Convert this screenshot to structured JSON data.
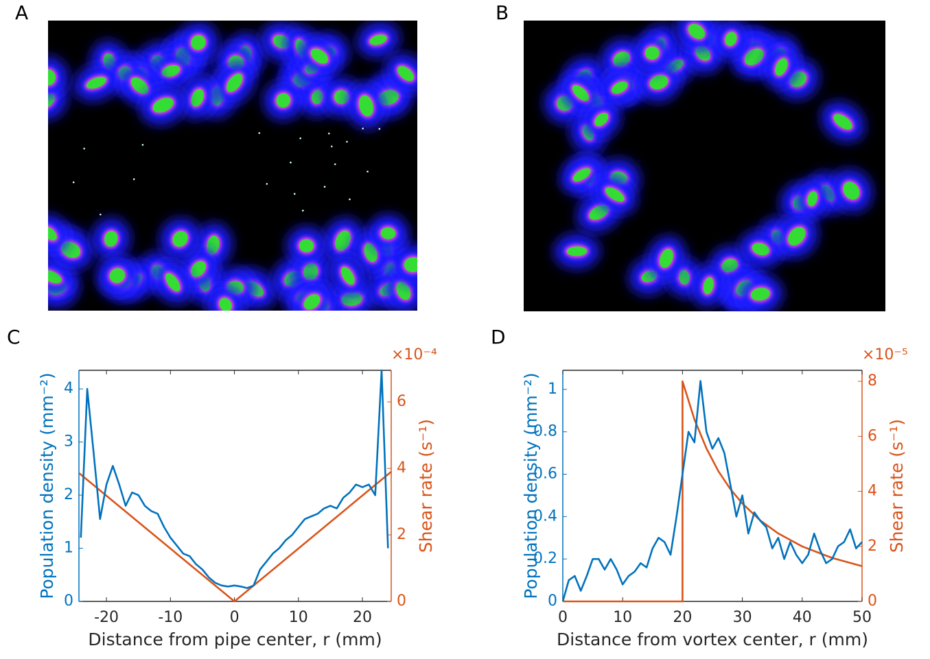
{
  "panels": [
    {
      "label": "A"
    },
    {
      "label": "B"
    }
  ],
  "chart_data": [
    {
      "type": "line",
      "panel_label": "C",
      "xlabel": "Distance from pipe center, r (mm)",
      "ylabel": "Population density (mm⁻²)",
      "y2label": "Shear rate (s⁻¹)",
      "y2multiplier": "×10⁻⁴",
      "xlim": [
        -24.3,
        24.5
      ],
      "xticks": [
        -20,
        -10,
        0,
        10,
        20
      ],
      "ylim": [
        0,
        4.35
      ],
      "yticks": [
        0,
        1,
        2,
        3,
        4
      ],
      "y2lim": [
        0,
        6.95
      ],
      "y2ticks": [
        0,
        2,
        4,
        6
      ],
      "series": [
        {
          "color": "#0072bd",
          "axis": "y",
          "x": [
            -24,
            -23,
            -22,
            -21,
            -20,
            -19,
            -18,
            -17,
            -16,
            -15,
            -14,
            -13,
            -12,
            -11,
            -10,
            -9,
            -8,
            -7,
            -6,
            -5,
            -4,
            -3,
            -2,
            -1,
            0,
            1,
            2,
            3,
            4,
            5,
            6,
            7,
            8,
            9,
            10,
            11,
            12,
            13,
            14,
            15,
            16,
            17,
            18,
            19,
            20,
            21,
            22,
            23,
            24
          ],
          "values": [
            1.2,
            4.0,
            2.8,
            1.55,
            2.2,
            2.55,
            2.2,
            1.8,
            2.05,
            2.0,
            1.8,
            1.7,
            1.65,
            1.4,
            1.2,
            1.05,
            0.9,
            0.85,
            0.7,
            0.6,
            0.45,
            0.35,
            0.3,
            0.28,
            0.3,
            0.28,
            0.25,
            0.3,
            0.6,
            0.75,
            0.9,
            1.0,
            1.15,
            1.25,
            1.4,
            1.55,
            1.6,
            1.65,
            1.75,
            1.8,
            1.75,
            1.95,
            2.05,
            2.2,
            2.15,
            2.2,
            2.0,
            4.35,
            1.0
          ]
        },
        {
          "color": "#d95319",
          "axis": "y2",
          "x": [
            -24.3,
            0,
            24.5
          ],
          "values": [
            3.86,
            0,
            3.9
          ]
        }
      ]
    },
    {
      "type": "line",
      "panel_label": "D",
      "xlabel": "Distance from vortex center, r (mm)",
      "ylabel": "Population density (mm⁻²)",
      "y2label": "Shear rate (s⁻¹)",
      "y2multiplier": "×10⁻⁵",
      "xlim": [
        0,
        50
      ],
      "xticks": [
        0,
        10,
        20,
        30,
        40,
        50
      ],
      "ylim": [
        0,
        1.09
      ],
      "yticks": [
        0,
        0.2,
        0.4,
        0.6,
        0.8,
        1
      ],
      "y2lim": [
        0,
        8.4
      ],
      "y2ticks": [
        0,
        2,
        4,
        6,
        8
      ],
      "series": [
        {
          "color": "#0072bd",
          "axis": "y",
          "x": [
            0,
            1,
            2,
            3,
            4,
            5,
            6,
            7,
            8,
            9,
            10,
            11,
            12,
            13,
            14,
            15,
            16,
            17,
            18,
            19,
            20,
            21,
            22,
            23,
            24,
            25,
            26,
            27,
            28,
            29,
            30,
            31,
            32,
            33,
            34,
            35,
            36,
            37,
            38,
            39,
            40,
            41,
            42,
            43,
            44,
            45,
            46,
            47,
            48,
            49,
            50
          ],
          "values": [
            0,
            0.1,
            0.12,
            0.05,
            0.12,
            0.2,
            0.2,
            0.15,
            0.2,
            0.15,
            0.08,
            0.12,
            0.14,
            0.18,
            0.16,
            0.25,
            0.3,
            0.28,
            0.22,
            0.4,
            0.6,
            0.8,
            0.75,
            1.04,
            0.8,
            0.72,
            0.77,
            0.7,
            0.55,
            0.4,
            0.5,
            0.32,
            0.42,
            0.38,
            0.35,
            0.25,
            0.3,
            0.2,
            0.28,
            0.22,
            0.18,
            0.22,
            0.32,
            0.24,
            0.18,
            0.2,
            0.26,
            0.28,
            0.34,
            0.25,
            0.28
          ]
        },
        {
          "color": "#d95319",
          "axis": "y2",
          "x": [
            0,
            20,
            20,
            22,
            24,
            26,
            28,
            30,
            33,
            36,
            40,
            45,
            50
          ],
          "values": [
            0,
            0,
            8.0,
            6.61,
            5.56,
            4.73,
            4.08,
            3.56,
            2.94,
            2.47,
            2.0,
            1.58,
            1.28
          ]
        }
      ]
    }
  ]
}
